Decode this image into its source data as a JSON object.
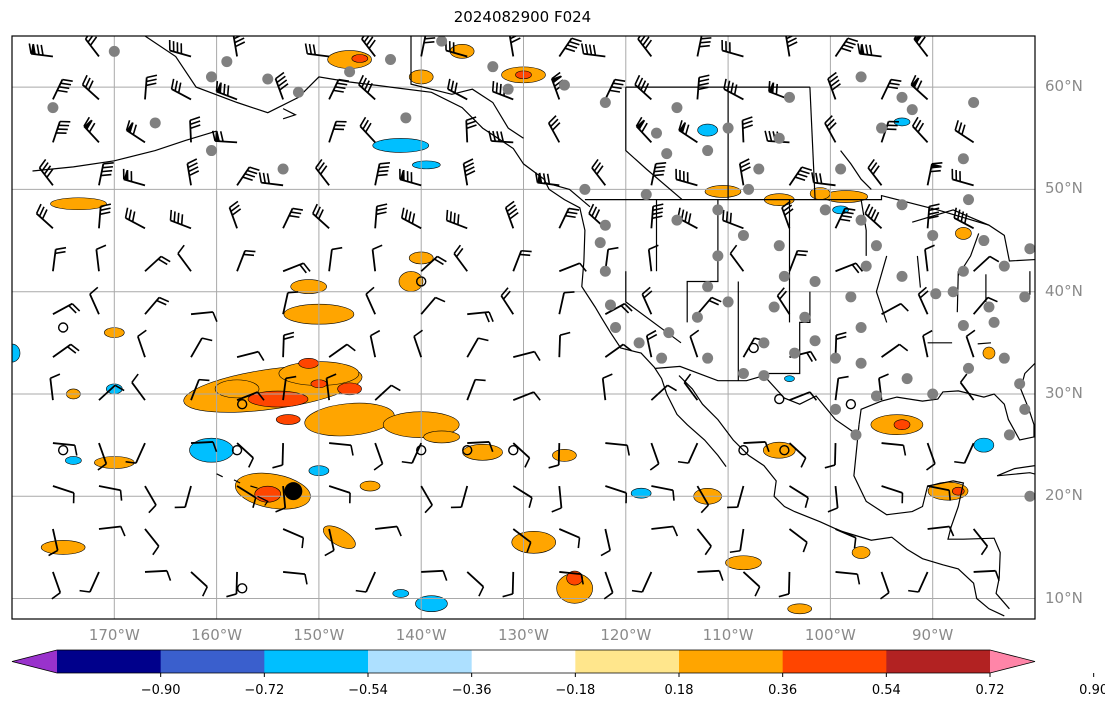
{
  "title": "2024082900 F024",
  "map": {
    "region": "Northeast Pacific and North America",
    "lon_range": [
      -180,
      -80
    ],
    "lat_range": [
      8,
      65
    ],
    "field": "contoured anomaly with wind barbs and station dots",
    "lat_labels": [
      "60°N",
      "50°N",
      "40°N",
      "30°N",
      "20°N",
      "10°N"
    ],
    "lon_labels": [
      "170°W",
      "160°W",
      "150°W",
      "140°W",
      "130°W",
      "120°W",
      "110°W",
      "100°W",
      "90°W"
    ],
    "gridlines": true,
    "colors": {
      "positive_light": "#ffe68c",
      "positive_mid": "#ffa500",
      "positive_strong": "#ff4500",
      "negative_light": "#ade0ff",
      "negative_mid": "#00bfff",
      "station": "#808080",
      "coast": "#000000",
      "grid": "#a9a9a9"
    },
    "marker": {
      "type": "large black dot",
      "lon": -152.5,
      "lat": 20.5
    }
  },
  "colorbar": {
    "orientation": "horizontal",
    "extend": "both",
    "tick_labels": [
      "−0.90",
      "−0.72",
      "−0.54",
      "−0.36",
      "−0.18",
      "0.18",
      "0.36",
      "0.54",
      "0.72",
      "0.90"
    ],
    "colors": [
      "#9932cc",
      "#00008b",
      "#3a5fcd",
      "#00bfff",
      "#ade0ff",
      "#ffffff",
      "#ffe68c",
      "#ffa500",
      "#ff4500",
      "#b22222",
      "#ff85a8"
    ]
  }
}
